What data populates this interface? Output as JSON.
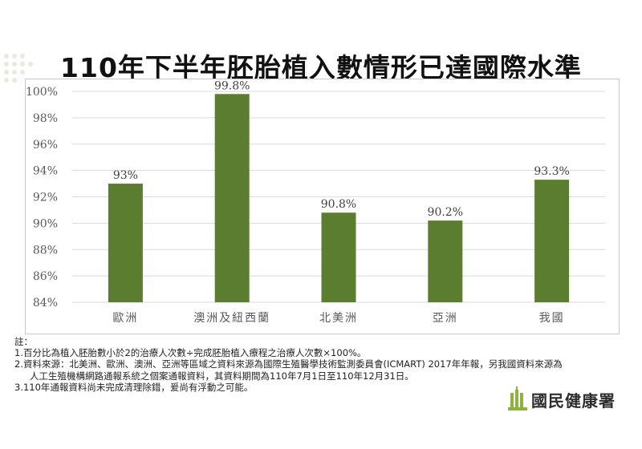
{
  "title": "110年下半年胚胎植入數情形已達國際水準",
  "chart_data": {
    "type": "bar",
    "categories": [
      "歐洲",
      "澳洲及紐西蘭",
      "北美洲",
      "亞洲",
      "我國"
    ],
    "values": [
      93,
      99.8,
      90.8,
      90.2,
      93.3
    ],
    "data_labels": [
      "93%",
      "99.8%",
      "90.8%",
      "90.2%",
      "93.3%"
    ],
    "ylim": [
      84,
      100
    ],
    "yticks": [
      84,
      86,
      88,
      90,
      92,
      94,
      96,
      98,
      100
    ],
    "ytick_labels": [
      "84%",
      "86%",
      "88%",
      "90%",
      "92%",
      "94%",
      "96%",
      "98%",
      "100%"
    ],
    "grid": true,
    "bar_color": "#5b7d2f",
    "grid_color": "#d9d9d9"
  },
  "notes": {
    "header": "註：",
    "line1": "1.百分比為植入胚胎數小於2的治療人次數÷完成胚胎植入療程之治療人次數×100%。",
    "line2a": "2.資料來源：北美洲、歐洲、澳洲、亞洲等區域之資料來源為國際生殖醫學技術監測委員會(ICMART) 2017年年報，另我國資料來源為",
    "line2b": "人工生殖機構網路通報系統之個案通報資料，其資料期間為110年7月1日至110年12月31日。",
    "line3": "3.110年通報資料尚未完成清理除錯，爰尚有浮動之可能。"
  },
  "logo": {
    "text": "國民健康署",
    "icon": "hpa-building-icon",
    "color": "#8ab43b"
  }
}
